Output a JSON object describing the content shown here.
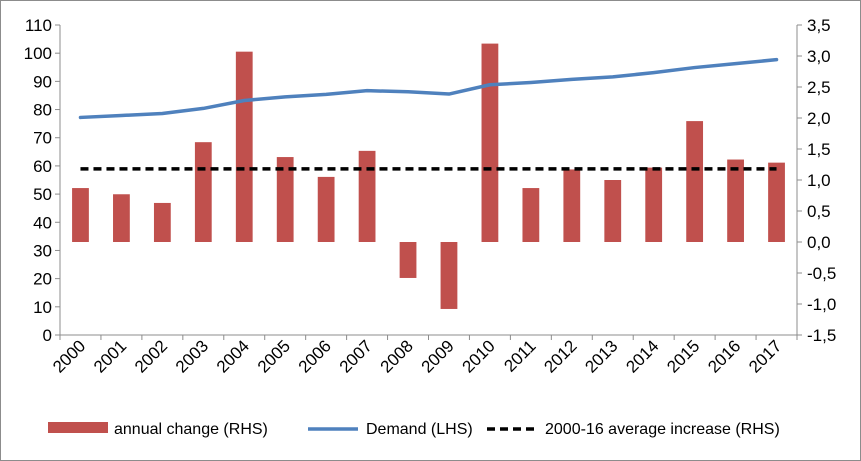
{
  "chart_data": {
    "type": "bar+line",
    "categories": [
      "2000",
      "2001",
      "2002",
      "2003",
      "2004",
      "2005",
      "2006",
      "2007",
      "2008",
      "2009",
      "2010",
      "2011",
      "2012",
      "2013",
      "2014",
      "2015",
      "2016",
      "2017"
    ],
    "series": [
      {
        "name": "annual change (RHS)",
        "type": "bar",
        "axis": "right",
        "color": "#c0504d",
        "values": [
          0.87,
          0.77,
          0.63,
          1.61,
          3.07,
          1.37,
          1.05,
          1.47,
          -0.58,
          -1.08,
          3.2,
          0.87,
          1.17,
          1.0,
          1.2,
          1.95,
          1.33,
          1.28
        ]
      },
      {
        "name": "Demand (LHS)",
        "type": "line",
        "axis": "left",
        "color": "#4f81bd",
        "values": [
          77.2,
          77.9,
          78.6,
          80.4,
          83.2,
          84.5,
          85.4,
          86.7,
          86.3,
          85.5,
          88.8,
          89.6,
          90.7,
          91.6,
          93.1,
          94.9,
          96.3,
          97.7
        ]
      },
      {
        "name": "2000-16 average increase (RHS)",
        "type": "line",
        "style": "dashed",
        "axis": "right",
        "color": "#000000",
        "value": 1.18
      }
    ],
    "left_axis": {
      "min": 0,
      "max": 110,
      "step": 10,
      "ticks": [
        "0",
        "10",
        "20",
        "30",
        "40",
        "50",
        "60",
        "70",
        "80",
        "90",
        "100",
        "110"
      ]
    },
    "right_axis": {
      "min": -1.5,
      "max": 3.5,
      "step": 0.5,
      "ticks": [
        "-1,5",
        "-1,0",
        "-0,5",
        "0,0",
        "0,5",
        "1,0",
        "1,5",
        "2,0",
        "2,5",
        "3,0",
        "3,5"
      ]
    },
    "grid": false,
    "legend_position": "bottom"
  }
}
